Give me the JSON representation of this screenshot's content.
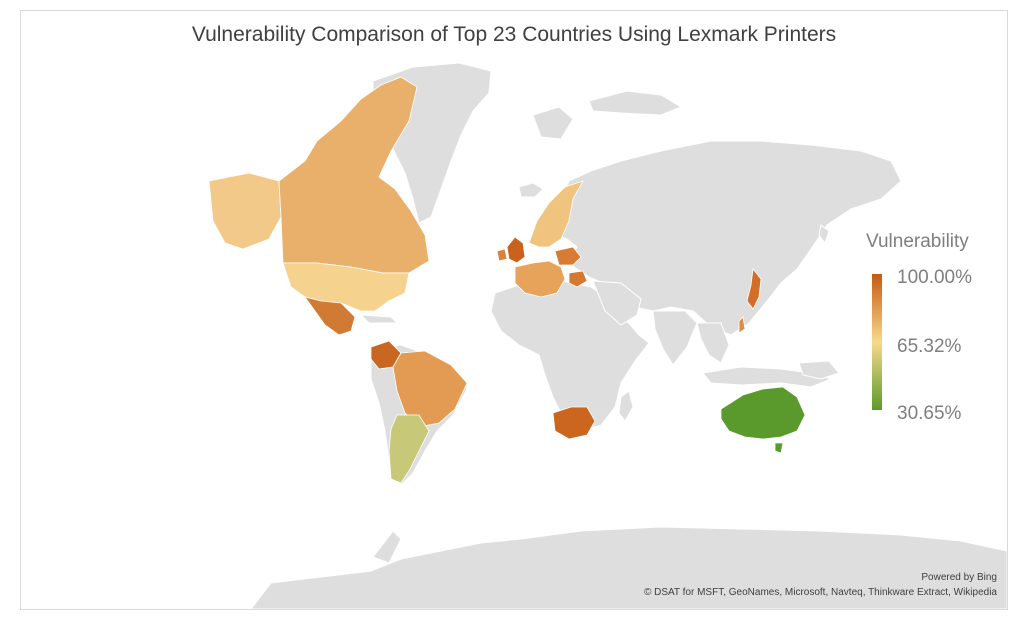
{
  "title": "Vulnerability Comparison of Top 23 Countries Using Lexmark Printers",
  "legend": {
    "title": "Vulnerability",
    "max_label": "100.00%",
    "mid_label": "65.32%",
    "min_label": "30.65%",
    "max_value": 100.0,
    "mid_value": 65.32,
    "min_value": 30.65,
    "color_max": "#c55a11",
    "color_mid": "#f7d98c",
    "color_min": "#5b9a2b"
  },
  "base_land_color": "#dedede",
  "country_colors": {
    "canada": "#e8b06b",
    "greenland": "#dedede",
    "alaska": "#f3c98a",
    "usa": "#f5d38f",
    "mexico": "#d07a33",
    "colombia": "#c9661f",
    "brazil": "#e39a52",
    "argentina": "#c7c978",
    "uk": "#c8621d",
    "ireland": "#d8833c",
    "scandinavia": "#f0c47e",
    "western-europe": "#e8a35a",
    "poland": "#d77c32",
    "romania": "#d4792f",
    "south-africa": "#cb661f",
    "japan": "#d26e27",
    "taiwan": "#df8c45",
    "australia": "#5a9a2c"
  },
  "attribution": {
    "bing": "Powered by Bing",
    "credits": "© DSAT for MSFT, GeoNames, Microsoft, Navteq, Thinkware Extract, Wikipedia"
  }
}
